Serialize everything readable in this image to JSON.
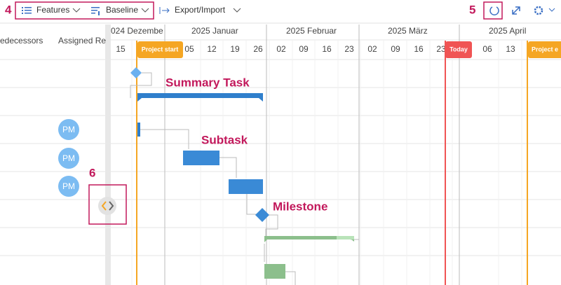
{
  "toolbar": {
    "callout_left": "4",
    "features": "Features",
    "baseline": "Baseline",
    "export_import": "Export/Import",
    "callout_right": "5"
  },
  "columns": [
    "edecessors",
    "Assigned Re"
  ],
  "months": [
    "024 Dezembe",
    "2025 Januar",
    "2025 Februar",
    "2025 März",
    "2025 April"
  ],
  "weeks": [
    "15",
    "05",
    "12",
    "19",
    "26",
    "02",
    "09",
    "16",
    "23",
    "02",
    "09",
    "16",
    "23",
    "06",
    "13"
  ],
  "markers": {
    "project_start": "Project start",
    "today": "Today",
    "project_end": "Project e"
  },
  "avatars": [
    "PM",
    "PM",
    "PM"
  ],
  "annotations": {
    "summary_task": "Summary Task",
    "subtask": "Subtask",
    "milestone": "Milestone",
    "callout_splitter": "6"
  }
}
